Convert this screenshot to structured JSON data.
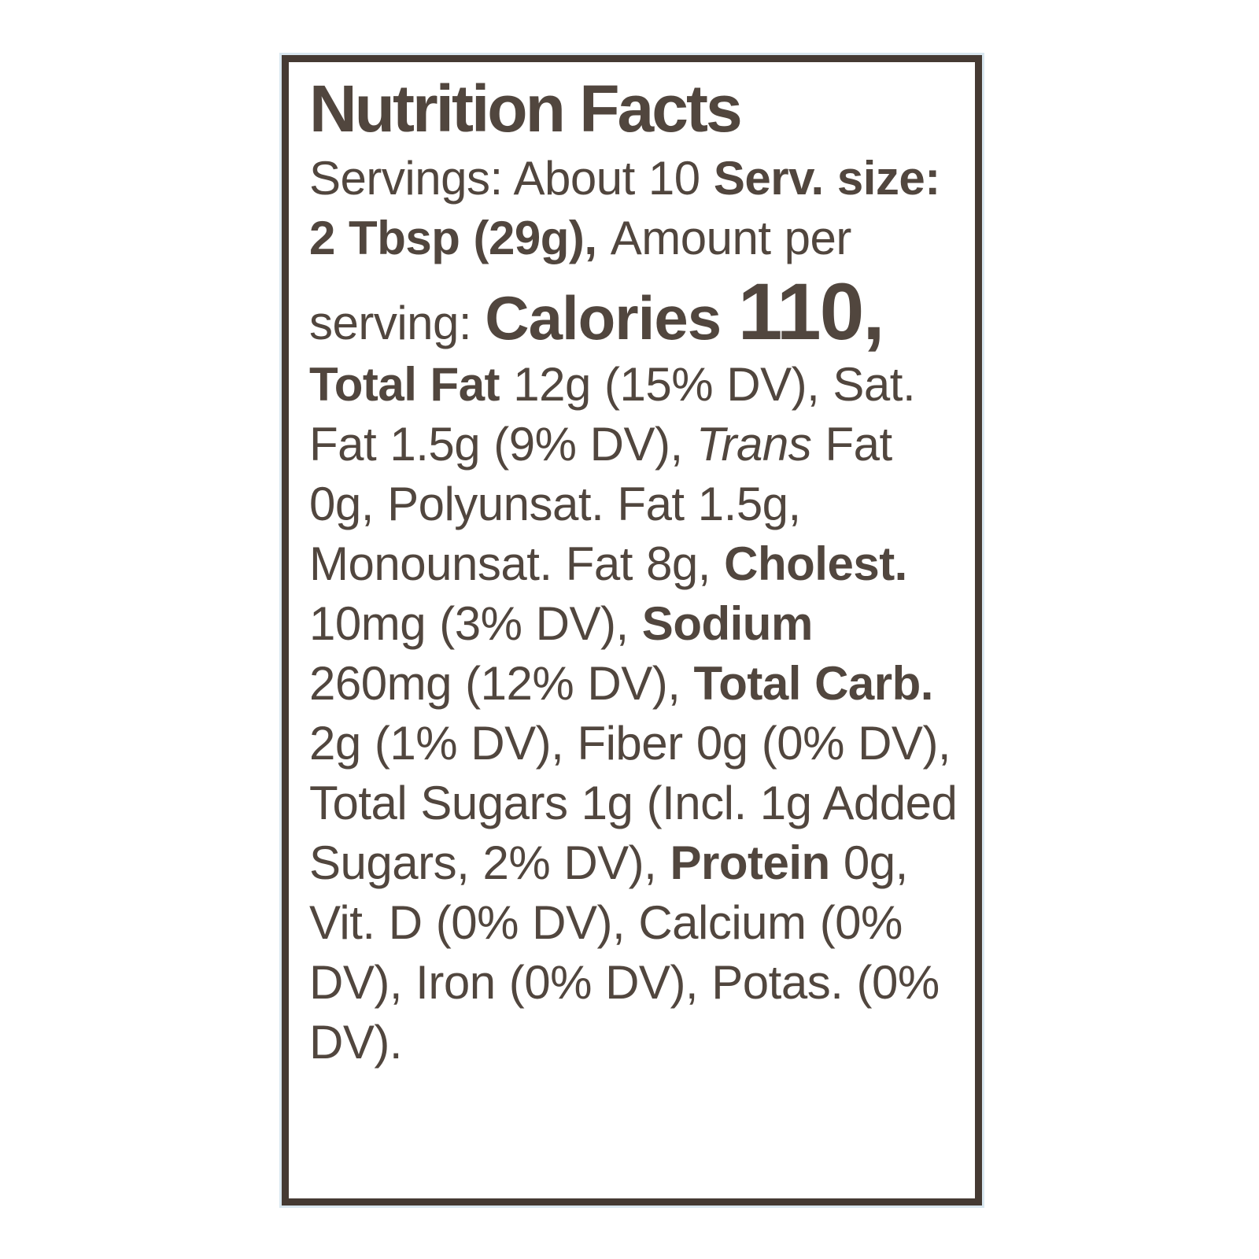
{
  "colors": {
    "text": "#51463e",
    "border": "#453a33",
    "background": "#ffffff",
    "outer_edge_tint": "#d9e7f0"
  },
  "label": {
    "title": "Nutrition Facts",
    "segments": {
      "servings": "Servings: About 10 ",
      "serv_size": "Serv. size: 2 Tbsp (29g), ",
      "amount_per_serving": "Amount per serving: ",
      "calories_label": "Calories ",
      "calories_value": "110, ",
      "total_fat_label": "Total Fat ",
      "total_fat_values": "12g (15% DV), Sat. Fat 1.5g (9% DV), ",
      "trans_word": "Trans",
      "trans_fat_and_unsat_values": " Fat 0g, Polyunsat. Fat 1.5g, Monounsat. Fat 8g, ",
      "cholesterol_label": "Cholest.",
      "cholesterol_value": " 10mg (3% DV), ",
      "sodium_label": "Sodium",
      "sodium_value": " 260mg (12% DV), ",
      "total_carb_label": "Total Carb.",
      "total_carb_values": " 2g (1% DV), Fiber 0g (0% DV), Total Sugars 1g (Incl. 1g Added Sugars, 2% DV), ",
      "protein_label": "Protein",
      "protein_and_micronutrient_values": " 0g, Vit. D (0% DV), Calcium (0% DV), Iron (0% DV), Potas. (0% DV)."
    }
  }
}
